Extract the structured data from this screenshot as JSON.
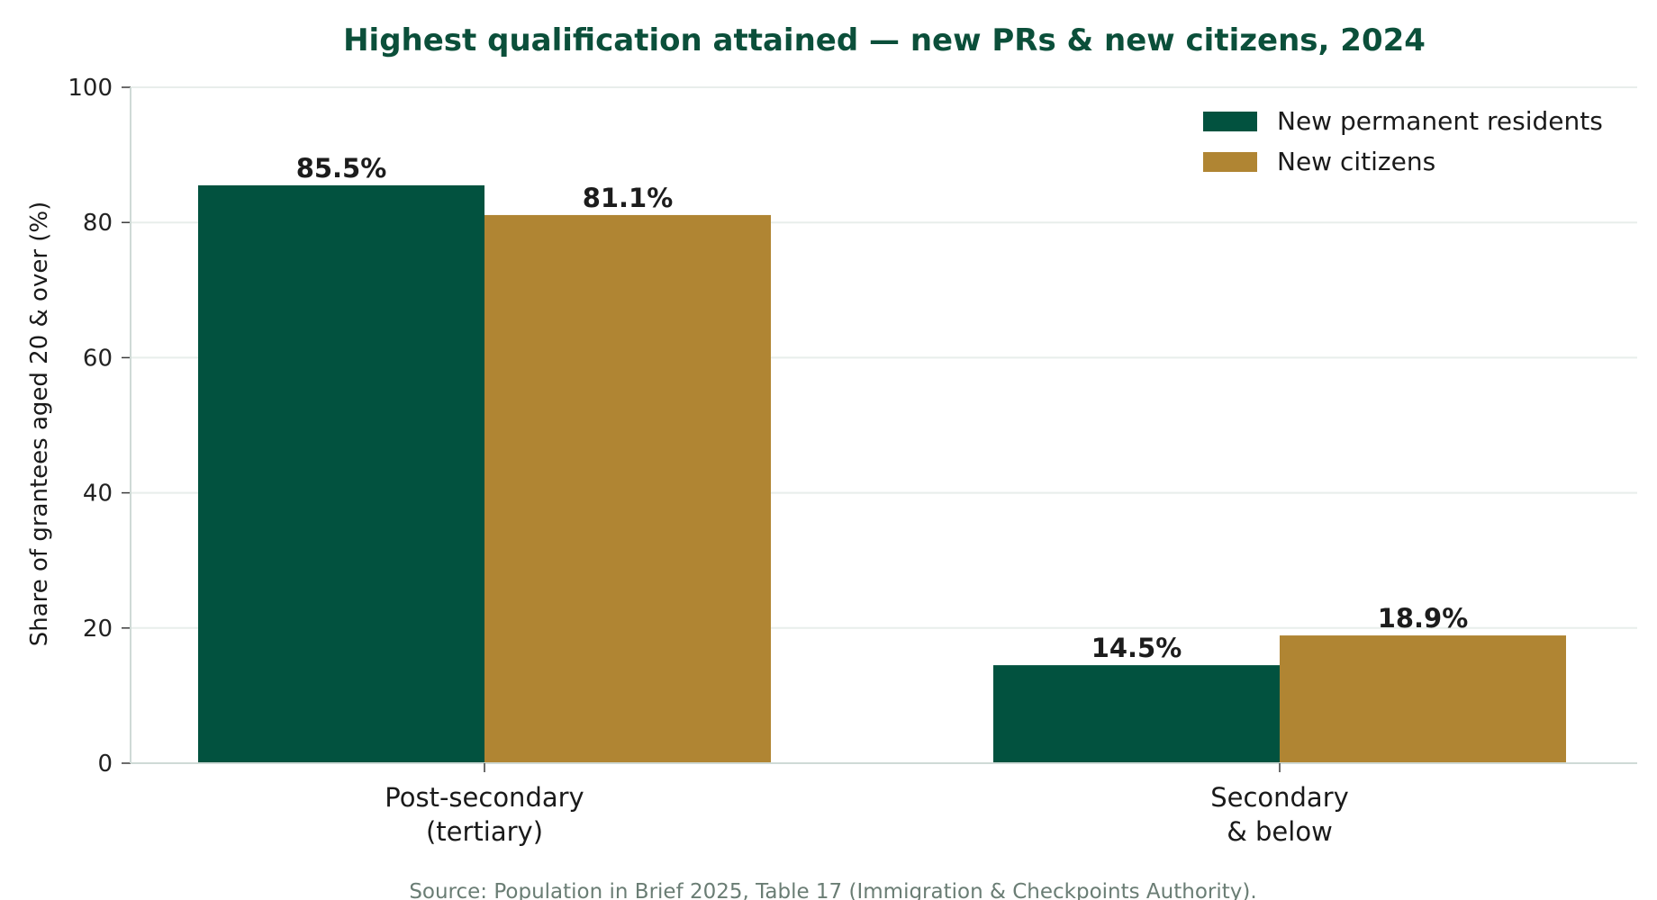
{
  "chart_data": {
    "type": "bar",
    "title": "Highest qualification attained — new PRs & new citizens, 2024",
    "ylabel": "Share of grantees aged 20 & over (%)",
    "xlabel": "",
    "categories": [
      [
        "Post-secondary",
        "(tertiary)"
      ],
      [
        "Secondary",
        "& below"
      ]
    ],
    "series": [
      {
        "name": "New permanent residents",
        "color": "#02523f",
        "values": [
          85.5,
          14.5
        ],
        "labels": [
          "85.5%",
          "14.5%"
        ]
      },
      {
        "name": "New citizens",
        "color": "#b08533",
        "values": [
          81.1,
          18.9
        ],
        "labels": [
          "81.1%",
          "18.9%"
        ]
      }
    ],
    "ylim": [
      0,
      100
    ],
    "yticks": [
      0,
      20,
      40,
      60,
      80,
      100
    ],
    "ytick_labels": [
      "0",
      "20",
      "40",
      "60",
      "80",
      "100"
    ],
    "grid": true,
    "legend_position": "top-right",
    "source": "Source: Population in Brief 2025, Table 17 (Immigration & Checkpoints Authority).",
    "colors": {
      "title": "#0b4f3a",
      "source": "#6a7d74",
      "grid": "#e8eeeb",
      "axis": "#cfdad6"
    }
  }
}
